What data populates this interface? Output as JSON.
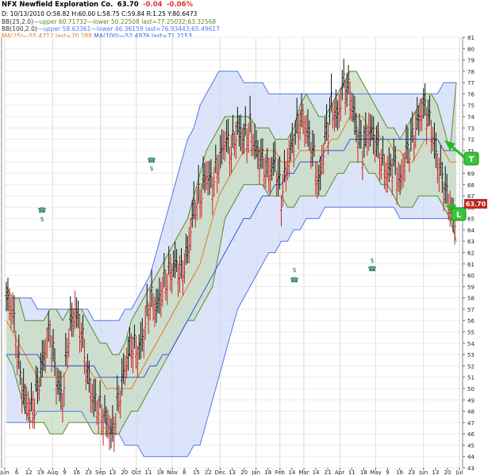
{
  "header": {
    "symbol": "NFX Newfield Exploration Co.",
    "last": "63.70",
    "change": "-0.04",
    "change_pct": "-0.06%",
    "line2": "D: 10/13/2010 O:58.82 H:60.00 L:58.75 C:59.84 R:1.25 Y:80.6473",
    "bb_short": "BB(25,2.0)",
    "bb_short_values": "—upper 60.71732—lower 50.22508 last=77.25032;63.32568",
    "bb_long": "BB(100,2.0)",
    "bb_long_values": "—upper 58.63361—lower 46.36159 last=76.93443;65.49617",
    "ma_short": "MA(25)",
    "ma_short_values": "—55.4712 last=70.288",
    "ma_long": "MA(100)",
    "ma_long_values": "—52.4976 last=71.2153"
  },
  "colors": {
    "price_up": "#111111",
    "price_down": "#cc2222",
    "bb_short": "#5a8a2a",
    "bb_short_fill": "#c8dcc0",
    "bb_long": "#5577ee",
    "bb_long_fill": "#cdd8f6",
    "ma_short": "#e07a20",
    "ma_long": "#3355dd",
    "last_badge": "#c0261e",
    "arrow": "#22bb22",
    "event_icon": "#1e7a4a"
  },
  "chart_data": {
    "type": "line",
    "title": "NFX Newfield Exploration Co.",
    "ylim": [
      43,
      81
    ],
    "y_ticks": [
      43,
      44,
      45,
      46,
      47,
      48,
      49,
      50,
      51,
      52,
      53,
      54,
      55,
      56,
      57,
      58,
      59,
      60,
      61,
      62,
      63,
      64,
      65,
      66,
      67,
      68,
      69,
      70,
      71,
      72,
      73,
      74,
      75,
      76,
      77,
      78,
      79,
      80,
      81
    ],
    "x_labels": [
      "Jun",
      "6",
      "12",
      "19",
      "Aug",
      "9",
      "16",
      "23",
      "Sep",
      "13",
      "20",
      "Oct",
      "11",
      "18",
      "Nov",
      "8",
      "15",
      "22",
      "Dec",
      "13",
      "20",
      "Jan",
      "18",
      "Feb",
      "14",
      "Mar",
      "14",
      "21",
      "Apr",
      "11",
      "18",
      "May",
      "9",
      "16",
      "23",
      "Jun",
      "13",
      "20",
      "Jul"
    ],
    "last_price": "63.70",
    "close": [
      58,
      57,
      52,
      49,
      48,
      50,
      53,
      55,
      51,
      49,
      55,
      57,
      55,
      51,
      49,
      48,
      47,
      46,
      49,
      52,
      54,
      53,
      55,
      58,
      57,
      59,
      60,
      61,
      60,
      62,
      66,
      67,
      69,
      68,
      70,
      72,
      71,
      73,
      72,
      73,
      71,
      70,
      69,
      70,
      67,
      70,
      72,
      74,
      73,
      71,
      68,
      72,
      75,
      74,
      77,
      76,
      73,
      71,
      73,
      72,
      70,
      69,
      70,
      68,
      71,
      72,
      74,
      75,
      73,
      70,
      68,
      66,
      64
    ],
    "ma25": [
      56,
      55,
      54,
      53,
      52,
      51,
      51,
      51,
      51,
      51,
      52,
      52,
      52,
      52,
      51,
      51,
      50,
      50,
      50,
      50,
      50,
      51,
      52,
      53,
      54,
      55,
      56,
      57,
      58,
      59,
      60,
      61,
      63,
      65,
      67,
      68,
      69,
      70,
      71,
      71,
      71,
      71,
      71,
      71,
      70,
      70,
      70,
      71,
      71,
      71,
      71,
      71,
      72,
      72,
      73,
      74,
      74,
      74,
      73,
      73,
      72,
      72,
      71,
      71,
      70,
      70,
      71,
      72,
      72,
      72,
      71,
      70,
      70
    ],
    "ma100": [
      53,
      53,
      53,
      53,
      53,
      53,
      52,
      52,
      52,
      52,
      52,
      52,
      52,
      52,
      52,
      51,
      51,
      51,
      51,
      51,
      51,
      51,
      51,
      52,
      52,
      53,
      53,
      54,
      55,
      56,
      57,
      58,
      59,
      60,
      61,
      62,
      63,
      64,
      65,
      65,
      66,
      67,
      67,
      68,
      68,
      69,
      69,
      70,
      70,
      70,
      70,
      71,
      71,
      71,
      71,
      72,
      72,
      72,
      72,
      72,
      72,
      72,
      72,
      72,
      72,
      72,
      72,
      72,
      72,
      72,
      71,
      71,
      71
    ],
    "bb25_upper": [
      59,
      58,
      58,
      56,
      56,
      56,
      56,
      57,
      57,
      56,
      57,
      57,
      57,
      56,
      55,
      54,
      54,
      53,
      53,
      54,
      56,
      57,
      58,
      59,
      60,
      61,
      62,
      63,
      64,
      65,
      67,
      69,
      71,
      72,
      73,
      74,
      74,
      74,
      74,
      74,
      73,
      73,
      73,
      72,
      72,
      72,
      73,
      75,
      76,
      75,
      74,
      74,
      75,
      76,
      77,
      78,
      78,
      77,
      76,
      75,
      74,
      73,
      73,
      72,
      73,
      74,
      75,
      76,
      76,
      75,
      73,
      71,
      77
    ],
    "bb25_lower": [
      53,
      52,
      50,
      48,
      47,
      47,
      47,
      46,
      46,
      46,
      47,
      47,
      47,
      47,
      46,
      46,
      46,
      46,
      46,
      47,
      48,
      48,
      49,
      50,
      51,
      52,
      53,
      54,
      55,
      56,
      56,
      57,
      58,
      59,
      62,
      65,
      66,
      67,
      68,
      68,
      68,
      68,
      67,
      67,
      67,
      66,
      66,
      67,
      67,
      67,
      67,
      67,
      68,
      69,
      69,
      70,
      70,
      70,
      69,
      69,
      68,
      68,
      67,
      66,
      66,
      66,
      67,
      67,
      67,
      67,
      66,
      65,
      63
    ],
    "bb100_upper": [
      58,
      58,
      58,
      58,
      58,
      57,
      57,
      57,
      57,
      57,
      57,
      57,
      57,
      57,
      56,
      56,
      56,
      56,
      56,
      57,
      57,
      58,
      59,
      60,
      62,
      64,
      66,
      68,
      70,
      72,
      73,
      75,
      76,
      77,
      78,
      78,
      78,
      78,
      77,
      77,
      77,
      77,
      76,
      76,
      76,
      76,
      76,
      76,
      76,
      76,
      76,
      76,
      76,
      76,
      76,
      76,
      76,
      76,
      76,
      76,
      76,
      76,
      76,
      76,
      76,
      76,
      76,
      76,
      76,
      76,
      77,
      77,
      77
    ],
    "bb100_lower": [
      47,
      47,
      47,
      47,
      47,
      48,
      48,
      48,
      48,
      48,
      48,
      48,
      48,
      47,
      47,
      47,
      47,
      46,
      46,
      45,
      45,
      45,
      44,
      44,
      44,
      44,
      44,
      44,
      44,
      44,
      45,
      45,
      47,
      49,
      51,
      53,
      55,
      57,
      58,
      59,
      60,
      61,
      62,
      62,
      63,
      63,
      64,
      64,
      65,
      65,
      65,
      66,
      66,
      66,
      66,
      66,
      66,
      66,
      66,
      66,
      66,
      66,
      66,
      65,
      65,
      65,
      65,
      65,
      65,
      65,
      65,
      65,
      65
    ]
  }
}
